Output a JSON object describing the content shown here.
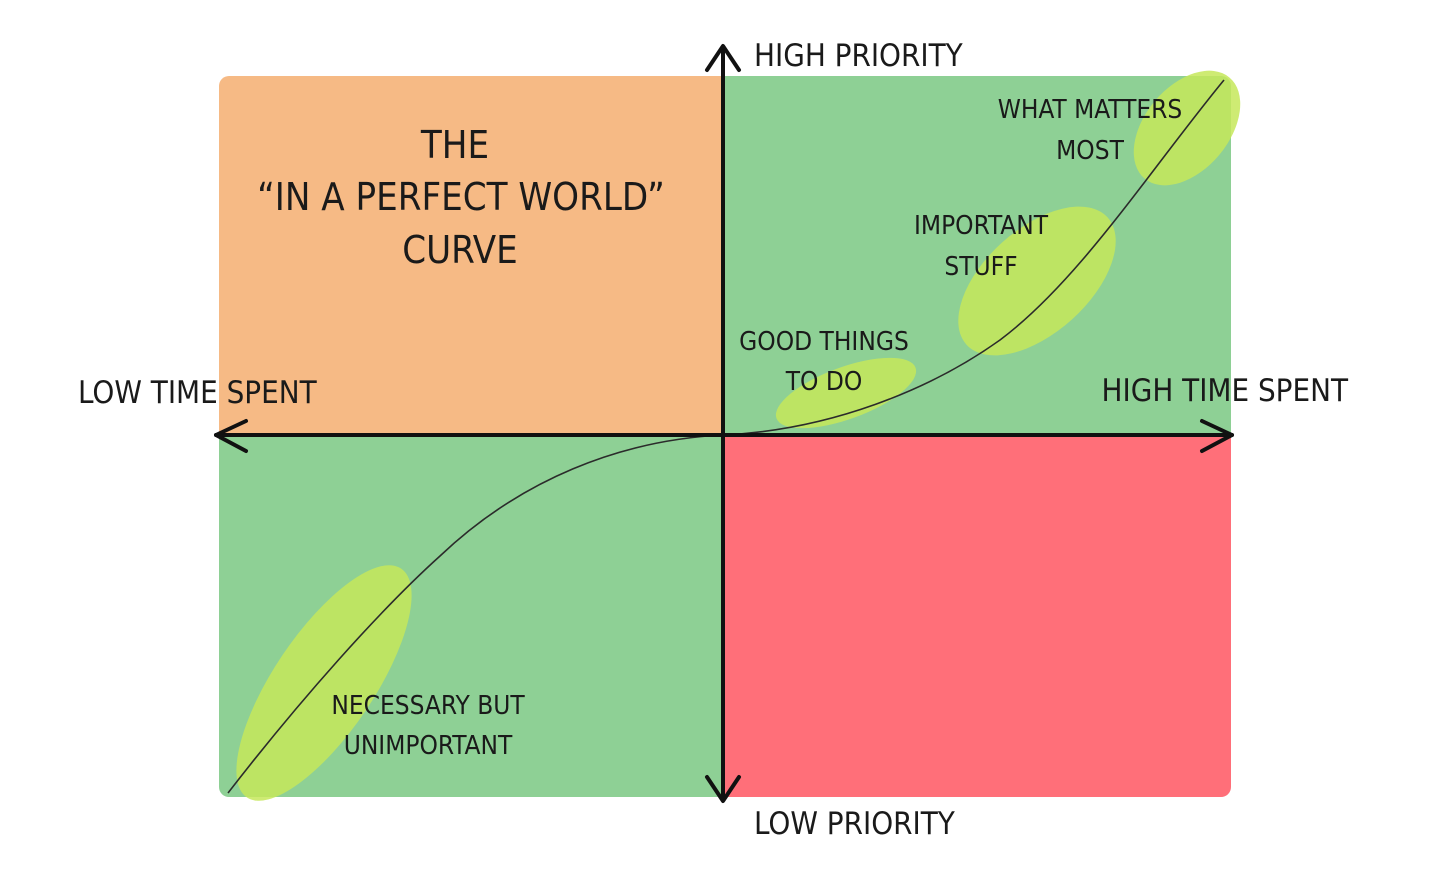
{
  "colors": {
    "top_left": "#f6ba85",
    "top_right": "#8ed095",
    "bottom_left": "#8ed095",
    "bottom_right": "#ff6f79",
    "highlight": "#c5e85a",
    "axis": "#111111",
    "curve": "#2b2b2b",
    "text": "#1a1a1a"
  },
  "title": [
    "THE",
    "“IN A PERFECT WORLD”",
    "CURVE"
  ],
  "axes": {
    "y_top": "HIGH PRIORITY",
    "y_bottom": "LOW PRIORITY",
    "x_left": "LOW TIME SPENT",
    "x_right": "HIGH TIME SPENT"
  },
  "regions": {
    "what_matters": [
      "WHAT MATTERS",
      "MOST"
    ],
    "important": [
      "IMPORTANT",
      "STUFF"
    ],
    "good": [
      "GOOD THINGS",
      "TO DO"
    ],
    "necessary": [
      "NECESSARY BUT",
      "UNIMPORTANT"
    ]
  }
}
